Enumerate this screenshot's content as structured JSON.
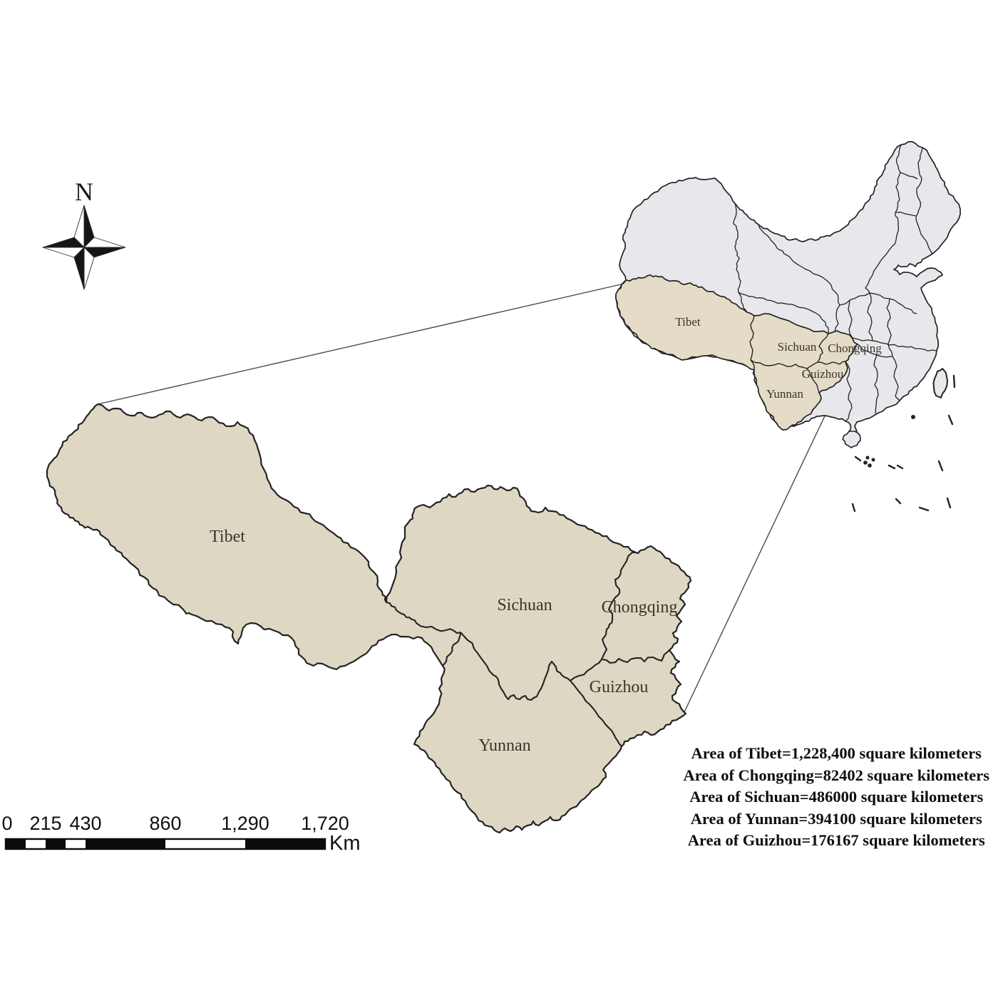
{
  "compass": {
    "label": "N"
  },
  "inset_map": {
    "labels": {
      "tibet": "Tibet",
      "sichuan": "Sichuan",
      "chongqing": "Chongqing",
      "guizhou": "Guizhou",
      "yunnan": "Yunnan"
    }
  },
  "main_map": {
    "labels": {
      "tibet": "Tibet",
      "sichuan": "Sichuan",
      "chongqing": "Chongqing",
      "guizhou": "Guizhou",
      "yunnan": "Yunnan"
    }
  },
  "scale_bar": {
    "ticks": [
      "0",
      "215",
      "430",
      "860",
      "1,290",
      "1,720"
    ],
    "unit": "Km"
  },
  "area_info": {
    "lines": [
      "Area of Tibet=1,228,400 square kilometers",
      "Area of Chongqing=82402 square kilometers",
      "Area of Sichuan=486000 square kilometers",
      "Area of Yunnan=394100 square kilometers",
      "Area of Guizhou=176167 square kilometers"
    ]
  },
  "colors": {
    "region_fill": "#ded7c3",
    "inset_region_fill": "#e4dcc6",
    "inset_province_fill": "#e8e7eb",
    "outline": "#232323",
    "callout_line": "#4a4a4a"
  }
}
